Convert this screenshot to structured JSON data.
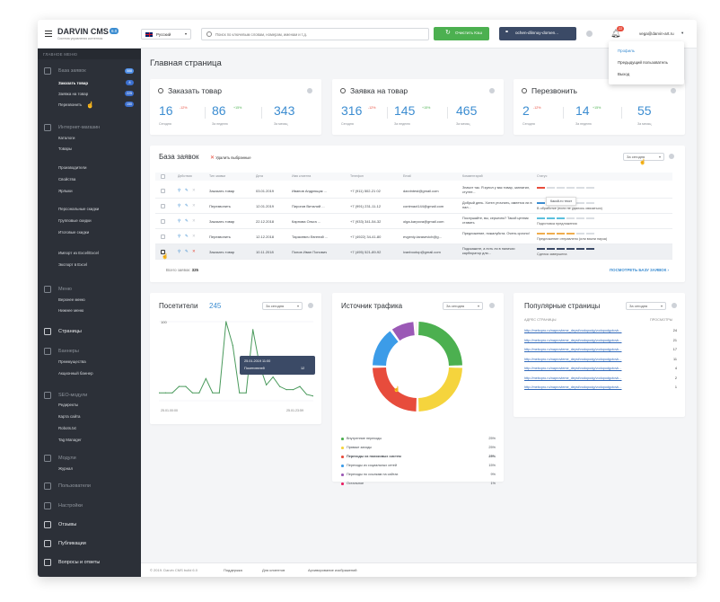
{
  "header": {
    "app_title": "DARVIN CMS",
    "version": "6.0",
    "subtitle": "Система управления контентом",
    "language": "Русский",
    "search_placeholder": "Поиск по ключевым словам, номерам, именам и т.д.",
    "clear_cache_label": "Очистить Кэш",
    "domain_label": "ochen-dlinnuy-domen...",
    "notifications_count": "22",
    "user_email": "vega@darvin-art.ru",
    "colors": {
      "accent": "#3c8dd1",
      "green": "#4cb050",
      "dark": "#2c3038",
      "red": "#e74c3c"
    }
  },
  "user_menu": {
    "items": [
      "Профиль",
      "Предыдущий пользователь",
      "Выход"
    ]
  },
  "sidebar": {
    "main_menu_label": "ГЛАВНОЕ МЕНЮ",
    "sections": [
      {
        "label": "База заявок",
        "badge": "588",
        "icon": "bell-icon"
      },
      {
        "label": "Интернет-магазин",
        "icon": "shop-icon"
      },
      {
        "label": "Меню",
        "icon": "menu-icon"
      },
      {
        "label": "Страницы",
        "icon": "page-icon"
      },
      {
        "label": "Баннеры",
        "icon": "banner-icon"
      },
      {
        "label": "SEO-модули",
        "icon": "seo-icon"
      },
      {
        "label": "Модули",
        "icon": "module-icon"
      },
      {
        "label": "Пользователи",
        "icon": "users-icon"
      },
      {
        "label": "Настройки",
        "icon": "settings-icon"
      },
      {
        "label": "Отзывы",
        "icon": "reviews-icon"
      },
      {
        "label": "Публикации",
        "icon": "publications-icon"
      },
      {
        "label": "Вопросы и ответы",
        "icon": "faq-icon"
      }
    ],
    "requests": [
      {
        "label": "Заказать товар",
        "badge": "8"
      },
      {
        "label": "Заявка на товар",
        "badge": "225"
      },
      {
        "label": "Перезвонить",
        "badge": "150"
      }
    ],
    "shop": [
      "Каталоги",
      "Товары",
      "Производители",
      "Свойства",
      "Ярлыки",
      "Персональные скидки",
      "Групповые скидки",
      "Итоговые скидки",
      "Импорт из Excel/Excel",
      "Экспорт в Excel"
    ],
    "menu": [
      "Верхнее меню",
      "Нижнее меню"
    ],
    "banners": [
      "Преимущества",
      "Акционный баннер"
    ],
    "seo": [
      "Редиректы",
      "Карта сайта",
      "Robots.txt",
      "Tag Manager"
    ],
    "modules": [
      "Журнал"
    ]
  },
  "page": {
    "title": "Главная страница"
  },
  "stats": [
    {
      "title": "Заказать товар",
      "icon": "chat-icon",
      "today": "16",
      "today_pct": "-12%",
      "week": "86",
      "week_pct": "+15%",
      "month": "343"
    },
    {
      "title": "Заявка на товар",
      "icon": "chat-icon",
      "today": "316",
      "today_pct": "-12%",
      "week": "145",
      "week_pct": "+15%",
      "month": "465"
    },
    {
      "title": "Перезвонить",
      "icon": "chat-icon",
      "today": "2",
      "today_pct": "-12%",
      "week": "14",
      "week_pct": "+15%",
      "month": "55"
    }
  ],
  "stat_labels": {
    "today": "Сегодня",
    "week": "За неделю",
    "month": "За месяц"
  },
  "requests": {
    "title": "База заявок",
    "delete_selected": "Удалить выбранные",
    "period": "За сегодня",
    "columns": [
      "Действия",
      "Тип заявки",
      "Дата",
      "Имя клиента",
      "Телефон",
      "Email",
      "Комментарий",
      "Статус"
    ],
    "rows": [
      {
        "type": "Заказать товар",
        "date": "03.01.2019",
        "name": "Иванов Андрющик ...",
        "phone": "+7 (911) 502-21 02",
        "email": "darvintest@gmail.com",
        "comment": "Значит так. Я купил у вас товар, заплатил, ступте...",
        "status": "",
        "status_colors": [
          "#e74c3c",
          "#d9dde2",
          "#d9dde2",
          "#d9dde2",
          "#d9dde2",
          "#d9dde2"
        ]
      },
      {
        "type": "Перезвонить",
        "date": "12.01.2019",
        "name": "Пирогов Виталий ...",
        "phone": "+7 (991) 231-11-12",
        "email": "contmact144@gmail.com",
        "comment": "Добрый день. Хотел уточнить, имеется ли в нал...",
        "status": "В обработке (если не удалось связаться)",
        "status_colors": [
          "#3c8dd1",
          "#3c8dd1",
          "#d9dde2",
          "#d9dde2",
          "#d9dde2",
          "#d9dde2"
        ]
      },
      {
        "type": "Заказать товар",
        "date": "22.12.2018",
        "name": "Карпова Ольга ...",
        "phone": "+7 (933) 341-54-32",
        "email": "olga-karpova@gmail.com",
        "comment": "Послушайте, вы, серьезно? Такой ценник ставить",
        "status": "Подготовка предложения",
        "status_colors": [
          "#5bc0de",
          "#5bc0de",
          "#5bc0de",
          "#d9dde2",
          "#d9dde2",
          "#d9dde2"
        ]
      },
      {
        "type": "Перезвонить",
        "date": "12.12.2018",
        "name": "Тарасевич Евгений ...",
        "phone": "+7 (4922) 34-41-80",
        "email": "evgeniy-tarasevich@g...",
        "comment": "Предложение, пожалуйста. Очень срочно!",
        "status": "Предложение отправлено (или взяли пауза)",
        "status_colors": [
          "#f0ad4e",
          "#f0ad4e",
          "#f0ad4e",
          "#f0ad4e",
          "#d9dde2",
          "#d9dde2"
        ]
      },
      {
        "type": "Заказать товар",
        "date": "10.11.2018",
        "name": "Попов Иван Попович",
        "phone": "+7 (495) 521-89-92",
        "email": "ivanbootop@gmail.com",
        "comment": "Подскажите, а есть ли в наличии карбюратор для...",
        "status": "Сделка завершена",
        "status_colors": [
          "#3b4a66",
          "#3b4a66",
          "#3b4a66",
          "#3b4a66",
          "#3b4a66",
          "#3b4a66"
        ]
      }
    ],
    "tooltip": "Какой-то текст",
    "total_label": "Всего заявок:",
    "total_value": "325",
    "view_all": "ПОСМОТРЕТЬ БАЗУ ЗАЯВОК"
  },
  "visitors": {
    "title": "Посетители",
    "count": "245",
    "period": "За сегодня",
    "y_top": "100",
    "y_bottom": "0",
    "x_start": "25.01.00:00",
    "x_end": "25.01.23:59",
    "tooltip_date": "25.01.2019 11:00",
    "tooltip_label": "Посетителей",
    "tooltip_value": "12"
  },
  "chart_data": {
    "type": "line",
    "title": "Посетители",
    "xlabel": "",
    "ylabel": "",
    "ylim": [
      0,
      100
    ],
    "x": [
      "25.01.00:00",
      "",
      "",
      "",
      "",
      "",
      "",
      "",
      "",
      "",
      "",
      "",
      "",
      "",
      "",
      "",
      "",
      "",
      "",
      "",
      "",
      "",
      "",
      "25.01.23:59"
    ],
    "series": [
      {
        "values": [
          10,
          10,
          10,
          18,
          18,
          10,
          10,
          28,
          10,
          10,
          100,
          70,
          10,
          10,
          90,
          45,
          20,
          30,
          18,
          14,
          14,
          18,
          8,
          6
        ]
      }
    ]
  },
  "traffic": {
    "title": "Источник трафика",
    "period": "За сегодня",
    "items": [
      {
        "name": "Внутренние переходы",
        "value": "25%",
        "color": "#4cb050"
      },
      {
        "name": "Прямые заходы",
        "value": "25%",
        "color": "#f5d43d"
      },
      {
        "name": "Переходы из поисковых систем",
        "value": "25%",
        "color": "#e74c3c"
      },
      {
        "name": "Переходы из социальных сетей",
        "value": "15%",
        "color": "#3c9ce8"
      },
      {
        "name": "Переходы по ссылкам на сайтах",
        "value": "9%",
        "color": "#9b59b6"
      },
      {
        "name": "Остальное",
        "value": "1%",
        "color": "#e91e63"
      }
    ]
  },
  "popular": {
    "title": "Популярные страницы",
    "period": "За сегодня",
    "col_page": "АДРЕС СТРАНИЦЫ",
    "col_views": "ПРОСМОТРЫ",
    "rows": [
      {
        "url": "http://mebcpro.ru/naprovleme_deyst/vodopodg/vodopodgotovk...",
        "views": "24"
      },
      {
        "url": "http://mebcpro.ru/naprovleme_deyst/vodopodg/vodopodgotovk...",
        "views": "21"
      },
      {
        "url": "http://mebcpro.ru/naprovleme_deyst/vodopodg/vodopodgotovk...",
        "views": "17"
      },
      {
        "url": "http://mebcpro.ru/naprovleme_deyst/vodopodg/vodopodgotovk...",
        "views": "11"
      },
      {
        "url": "http://mebcpro.ru/naprovleme_deyst/vodopodg/vodopodgotovk...",
        "views": "4"
      },
      {
        "url": "http://mebcpro.ru/naprovleme_deyst/vodopodg/vodopodgotovk...",
        "views": "2"
      },
      {
        "url": "http://mebcpro.ru/naprovleme_deyst/vodopodg/vodopodgotovk...",
        "views": "1"
      }
    ]
  },
  "footer": {
    "copyright": "© 2019. Darvin CMS build 6.0",
    "links": [
      "Поддержка",
      "Для клиентов",
      "Архивирование изображений"
    ]
  }
}
